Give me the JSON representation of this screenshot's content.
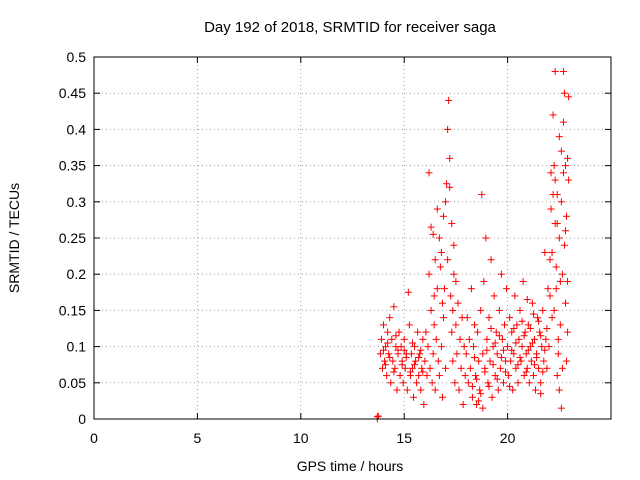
{
  "chart_data": {
    "type": "scatter",
    "title": "Day 192 of 2018, SRMTID for receiver saga",
    "xlabel": "GPS time / hours",
    "ylabel": "SRMTID / TECUs",
    "xlim": [
      0,
      25
    ],
    "ylim": [
      0,
      0.5
    ],
    "xticks": [
      0,
      5,
      10,
      15,
      20
    ],
    "xtick_labels": [
      "0",
      "5",
      "10",
      "15",
      "20"
    ],
    "yticks": [
      0,
      0.05,
      0.1,
      0.15,
      0.2,
      0.25,
      0.3,
      0.35,
      0.4,
      0.45,
      0.5
    ],
    "ytick_labels": [
      "0",
      "0.05",
      "0.1",
      "0.15",
      "0.2",
      "0.25",
      "0.3",
      "0.35",
      "0.4",
      "0.45",
      "0.5"
    ],
    "grid": true,
    "marker": "+",
    "series": [
      {
        "name": "SRMTID",
        "color": "#ff0000",
        "points": [
          [
            13.7,
            0.0
          ],
          [
            13.7,
            0.003
          ],
          [
            13.75,
            0.004
          ],
          [
            13.85,
            0.09
          ],
          [
            13.9,
            0.11
          ],
          [
            13.95,
            0.07
          ],
          [
            14.0,
            0.13
          ],
          [
            14.05,
            0.08
          ],
          [
            14.1,
            0.1
          ],
          [
            14.15,
            0.06
          ],
          [
            14.2,
            0.12
          ],
          [
            14.25,
            0.09
          ],
          [
            14.3,
            0.14
          ],
          [
            14.35,
            0.05
          ],
          [
            14.4,
            0.11
          ],
          [
            14.45,
            0.08
          ],
          [
            14.5,
            0.155
          ],
          [
            14.55,
            0.07
          ],
          [
            14.6,
            0.1
          ],
          [
            14.65,
            0.04
          ],
          [
            14.7,
            0.09
          ],
          [
            14.75,
            0.12
          ],
          [
            14.8,
            0.06
          ],
          [
            14.85,
            0.1
          ],
          [
            14.9,
            0.08
          ],
          [
            14.95,
            0.05
          ],
          [
            15.0,
            0.11
          ],
          [
            15.05,
            0.07
          ],
          [
            15.1,
            0.09
          ],
          [
            15.15,
            0.04
          ],
          [
            15.2,
            0.175
          ],
          [
            15.25,
            0.13
          ],
          [
            15.3,
            0.06
          ],
          [
            15.35,
            0.09
          ],
          [
            15.4,
            0.07
          ],
          [
            15.45,
            0.03
          ],
          [
            15.5,
            0.1
          ],
          [
            15.55,
            0.08
          ],
          [
            15.6,
            0.05
          ],
          [
            15.65,
            0.12
          ],
          [
            15.7,
            0.06
          ],
          [
            15.75,
            0.09
          ],
          [
            15.8,
            0.04
          ],
          [
            15.85,
            0.07
          ],
          [
            15.9,
            0.11
          ],
          [
            15.95,
            0.02
          ],
          [
            14.0,
            0.095
          ],
          [
            14.1,
            0.075
          ],
          [
            14.3,
            0.085
          ],
          [
            14.5,
            0.065
          ],
          [
            14.7,
            0.095
          ],
          [
            14.9,
            0.075
          ],
          [
            15.1,
            0.085
          ],
          [
            15.3,
            0.065
          ],
          [
            15.5,
            0.075
          ],
          [
            15.7,
            0.085
          ],
          [
            15.9,
            0.065
          ],
          [
            14.2,
            0.105
          ],
          [
            14.6,
            0.115
          ],
          [
            15.0,
            0.095
          ],
          [
            15.4,
            0.105
          ],
          [
            15.8,
            0.095
          ],
          [
            16.0,
            0.08
          ],
          [
            16.05,
            0.12
          ],
          [
            16.1,
            0.06
          ],
          [
            16.15,
            0.1
          ],
          [
            16.2,
            0.34
          ],
          [
            16.25,
            0.07
          ],
          [
            16.3,
            0.15
          ],
          [
            16.35,
            0.05
          ],
          [
            16.4,
            0.09
          ],
          [
            16.45,
            0.13
          ],
          [
            16.5,
            0.04
          ],
          [
            16.55,
            0.11
          ],
          [
            16.6,
            0.29
          ],
          [
            16.65,
            0.08
          ],
          [
            16.7,
            0.06
          ],
          [
            16.75,
            0.21
          ],
          [
            16.8,
            0.1
          ],
          [
            16.85,
            0.03
          ],
          [
            16.9,
            0.14
          ],
          [
            16.95,
            0.18
          ],
          [
            17.0,
            0.07
          ],
          [
            17.05,
            0.325
          ],
          [
            17.1,
            0.4
          ],
          [
            17.15,
            0.44
          ],
          [
            17.2,
            0.36
          ],
          [
            17.25,
            0.17
          ],
          [
            17.3,
            0.12
          ],
          [
            17.35,
            0.08
          ],
          [
            17.4,
            0.2
          ],
          [
            17.45,
            0.05
          ],
          [
            17.5,
            0.13
          ],
          [
            17.55,
            0.09
          ],
          [
            17.6,
            0.16
          ],
          [
            17.65,
            0.04
          ],
          [
            17.7,
            0.11
          ],
          [
            17.75,
            0.07
          ],
          [
            17.8,
            0.14
          ],
          [
            17.85,
            0.02
          ],
          [
            17.9,
            0.1
          ],
          [
            17.95,
            0.06
          ],
          [
            16.3,
            0.265
          ],
          [
            16.5,
            0.22
          ],
          [
            16.7,
            0.25
          ],
          [
            16.9,
            0.28
          ],
          [
            17.0,
            0.3
          ],
          [
            17.3,
            0.27
          ],
          [
            17.5,
            0.19
          ],
          [
            16.4,
            0.255
          ],
          [
            16.8,
            0.23
          ],
          [
            17.2,
            0.32
          ],
          [
            16.6,
            0.18
          ],
          [
            17.4,
            0.24
          ],
          [
            16.2,
            0.2
          ],
          [
            17.1,
            0.22
          ],
          [
            16.45,
            0.17
          ],
          [
            16.85,
            0.16
          ],
          [
            17.35,
            0.15
          ],
          [
            18.0,
            0.09
          ],
          [
            18.05,
            0.14
          ],
          [
            18.1,
            0.05
          ],
          [
            18.15,
            0.11
          ],
          [
            18.2,
            0.07
          ],
          [
            18.25,
            0.18
          ],
          [
            18.3,
            0.03
          ],
          [
            18.35,
            0.1
          ],
          [
            18.4,
            0.13
          ],
          [
            18.45,
            0.06
          ],
          [
            18.5,
            0.02
          ],
          [
            18.55,
            0.12
          ],
          [
            18.6,
            0.08
          ],
          [
            18.65,
            0.04
          ],
          [
            18.7,
            0.15
          ],
          [
            18.75,
            0.31
          ],
          [
            18.8,
            0.09
          ],
          [
            18.85,
            0.19
          ],
          [
            18.9,
            0.07
          ],
          [
            18.95,
            0.25
          ],
          [
            19.0,
            0.11
          ],
          [
            19.05,
            0.05
          ],
          [
            19.1,
            0.14
          ],
          [
            19.15,
            0.08
          ],
          [
            19.2,
            0.22
          ],
          [
            19.25,
            0.03
          ],
          [
            19.3,
            0.1
          ],
          [
            19.35,
            0.17
          ],
          [
            19.4,
            0.06
          ],
          [
            19.45,
            0.12
          ],
          [
            19.5,
            0.09
          ],
          [
            19.55,
            0.04
          ],
          [
            19.6,
            0.15
          ],
          [
            19.65,
            0.07
          ],
          [
            19.7,
            0.2
          ],
          [
            19.75,
            0.11
          ],
          [
            19.8,
            0.05
          ],
          [
            19.85,
            0.13
          ],
          [
            19.9,
            0.08
          ],
          [
            19.95,
            0.18
          ],
          [
            18.3,
            0.045
          ],
          [
            18.5,
            0.055
          ],
          [
            18.7,
            0.035
          ],
          [
            18.9,
            0.065
          ],
          [
            19.1,
            0.045
          ],
          [
            19.3,
            0.075
          ],
          [
            19.5,
            0.055
          ],
          [
            19.7,
            0.085
          ],
          [
            19.9,
            0.065
          ],
          [
            18.6,
            0.025
          ],
          [
            18.8,
            0.015
          ],
          [
            19.0,
            0.095
          ],
          [
            19.4,
            0.105
          ],
          [
            19.8,
            0.095
          ],
          [
            18.4,
            0.085
          ],
          [
            19.2,
            0.125
          ],
          [
            19.6,
            0.115
          ],
          [
            20.0,
            0.1
          ],
          [
            20.05,
            0.06
          ],
          [
            20.1,
            0.14
          ],
          [
            20.15,
            0.08
          ],
          [
            20.2,
            0.12
          ],
          [
            20.25,
            0.04
          ],
          [
            20.3,
            0.09
          ],
          [
            20.35,
            0.17
          ],
          [
            20.4,
            0.07
          ],
          [
            20.45,
            0.13
          ],
          [
            20.5,
            0.05
          ],
          [
            20.55,
            0.11
          ],
          [
            20.6,
            0.15
          ],
          [
            20.65,
            0.08
          ],
          [
            20.7,
            0.1
          ],
          [
            20.75,
            0.19
          ],
          [
            20.8,
            0.06
          ],
          [
            20.85,
            0.12
          ],
          [
            20.9,
            0.09
          ],
          [
            20.95,
            0.07
          ],
          [
            21.0,
            0.13
          ],
          [
            21.05,
            0.05
          ],
          [
            21.1,
            0.1
          ],
          [
            21.15,
            0.08
          ],
          [
            21.2,
            0.16
          ],
          [
            21.25,
            0.06
          ],
          [
            21.3,
            0.11
          ],
          [
            21.35,
            0.04
          ],
          [
            21.4,
            0.09
          ],
          [
            21.45,
            0.14
          ],
          [
            21.5,
            0.07
          ],
          [
            21.55,
            0.12
          ],
          [
            21.6,
            0.05
          ],
          [
            21.65,
            0.1
          ],
          [
            21.7,
            0.15
          ],
          [
            21.75,
            0.08
          ],
          [
            21.8,
            0.23
          ],
          [
            21.85,
            0.11
          ],
          [
            21.9,
            0.07
          ],
          [
            21.95,
            0.18
          ],
          [
            20.2,
            0.095
          ],
          [
            20.4,
            0.105
          ],
          [
            20.6,
            0.085
          ],
          [
            20.8,
            0.115
          ],
          [
            21.0,
            0.095
          ],
          [
            21.2,
            0.105
          ],
          [
            21.4,
            0.085
          ],
          [
            21.6,
            0.115
          ],
          [
            21.8,
            0.095
          ],
          [
            20.3,
            0.125
          ],
          [
            20.7,
            0.135
          ],
          [
            21.1,
            0.125
          ],
          [
            21.5,
            0.135
          ],
          [
            21.9,
            0.125
          ],
          [
            20.5,
            0.075
          ],
          [
            20.9,
            0.065
          ],
          [
            21.3,
            0.075
          ],
          [
            21.7,
            0.065
          ],
          [
            20.1,
            0.045
          ],
          [
            21.6,
            0.035
          ],
          [
            20.95,
            0.165
          ],
          [
            21.25,
            0.145
          ],
          [
            22.0,
            0.1
          ],
          [
            22.05,
            0.22
          ],
          [
            22.1,
            0.29
          ],
          [
            22.15,
            0.14
          ],
          [
            22.2,
            0.42
          ],
          [
            22.25,
            0.35
          ],
          [
            22.3,
            0.48
          ],
          [
            22.35,
            0.18
          ],
          [
            22.4,
            0.31
          ],
          [
            22.45,
            0.09
          ],
          [
            22.5,
            0.25
          ],
          [
            22.55,
            0.13
          ],
          [
            22.6,
            0.37
          ],
          [
            22.65,
            0.2
          ],
          [
            22.7,
            0.48
          ],
          [
            22.75,
            0.45
          ],
          [
            22.8,
            0.16
          ],
          [
            22.85,
            0.28
          ],
          [
            22.9,
            0.12
          ],
          [
            22.95,
            0.445
          ],
          [
            22.1,
            0.34
          ],
          [
            22.2,
            0.31
          ],
          [
            22.3,
            0.33
          ],
          [
            22.4,
            0.27
          ],
          [
            22.5,
            0.39
          ],
          [
            22.6,
            0.3
          ],
          [
            22.7,
            0.34
          ],
          [
            22.8,
            0.26
          ],
          [
            22.9,
            0.36
          ],
          [
            22.15,
            0.23
          ],
          [
            22.35,
            0.21
          ],
          [
            22.55,
            0.19
          ],
          [
            22.75,
            0.24
          ],
          [
            22.95,
            0.33
          ],
          [
            22.05,
            0.17
          ],
          [
            22.25,
            0.15
          ],
          [
            22.45,
            0.11
          ],
          [
            22.65,
            0.07
          ],
          [
            22.85,
            0.08
          ],
          [
            22.5,
            0.04
          ],
          [
            22.6,
            0.015
          ],
          [
            22.4,
            0.06
          ],
          [
            22.9,
            0.19
          ],
          [
            22.3,
            0.27
          ],
          [
            22.7,
            0.41
          ],
          [
            22.8,
            0.35
          ]
        ]
      }
    ]
  }
}
